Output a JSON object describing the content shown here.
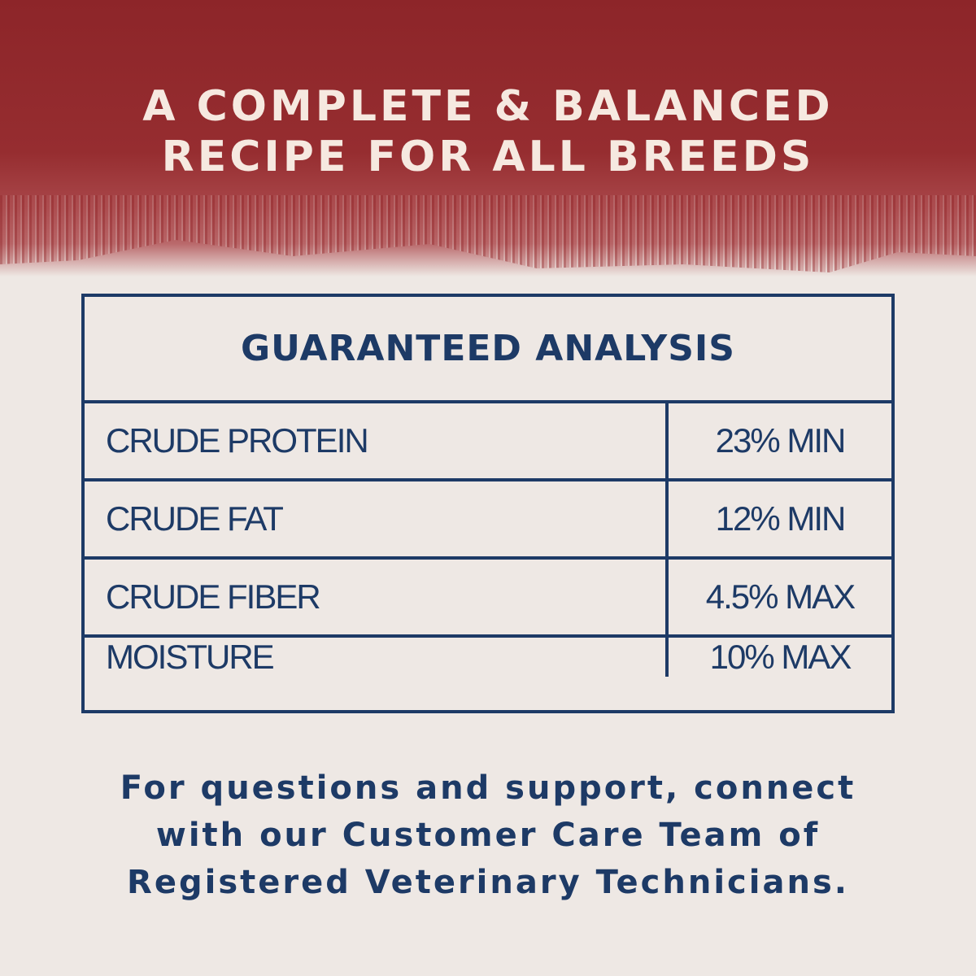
{
  "headline": {
    "line1": "A COMPLETE & BALANCED",
    "line2": "RECIPE FOR ALL BREEDS"
  },
  "analysis": {
    "title": "GUARANTEED ANALYSIS",
    "rows": [
      {
        "label": "CRUDE PROTEIN",
        "value": "23% MIN"
      },
      {
        "label": "CRUDE FAT",
        "value": "12% MIN"
      },
      {
        "label": "CRUDE FIBER",
        "value": "4.5% MAX"
      },
      {
        "label": "MOISTURE",
        "value": "10% MAX"
      }
    ]
  },
  "footer": {
    "line1": "For questions and support, connect",
    "line2": "with our Customer Care Team of",
    "line3": "Registered Veterinary Technicians."
  },
  "colors": {
    "banner": "#8d2529",
    "text_navy": "#1d3a66",
    "background": "#eee8e4",
    "headline_text": "#f6e9e0"
  }
}
